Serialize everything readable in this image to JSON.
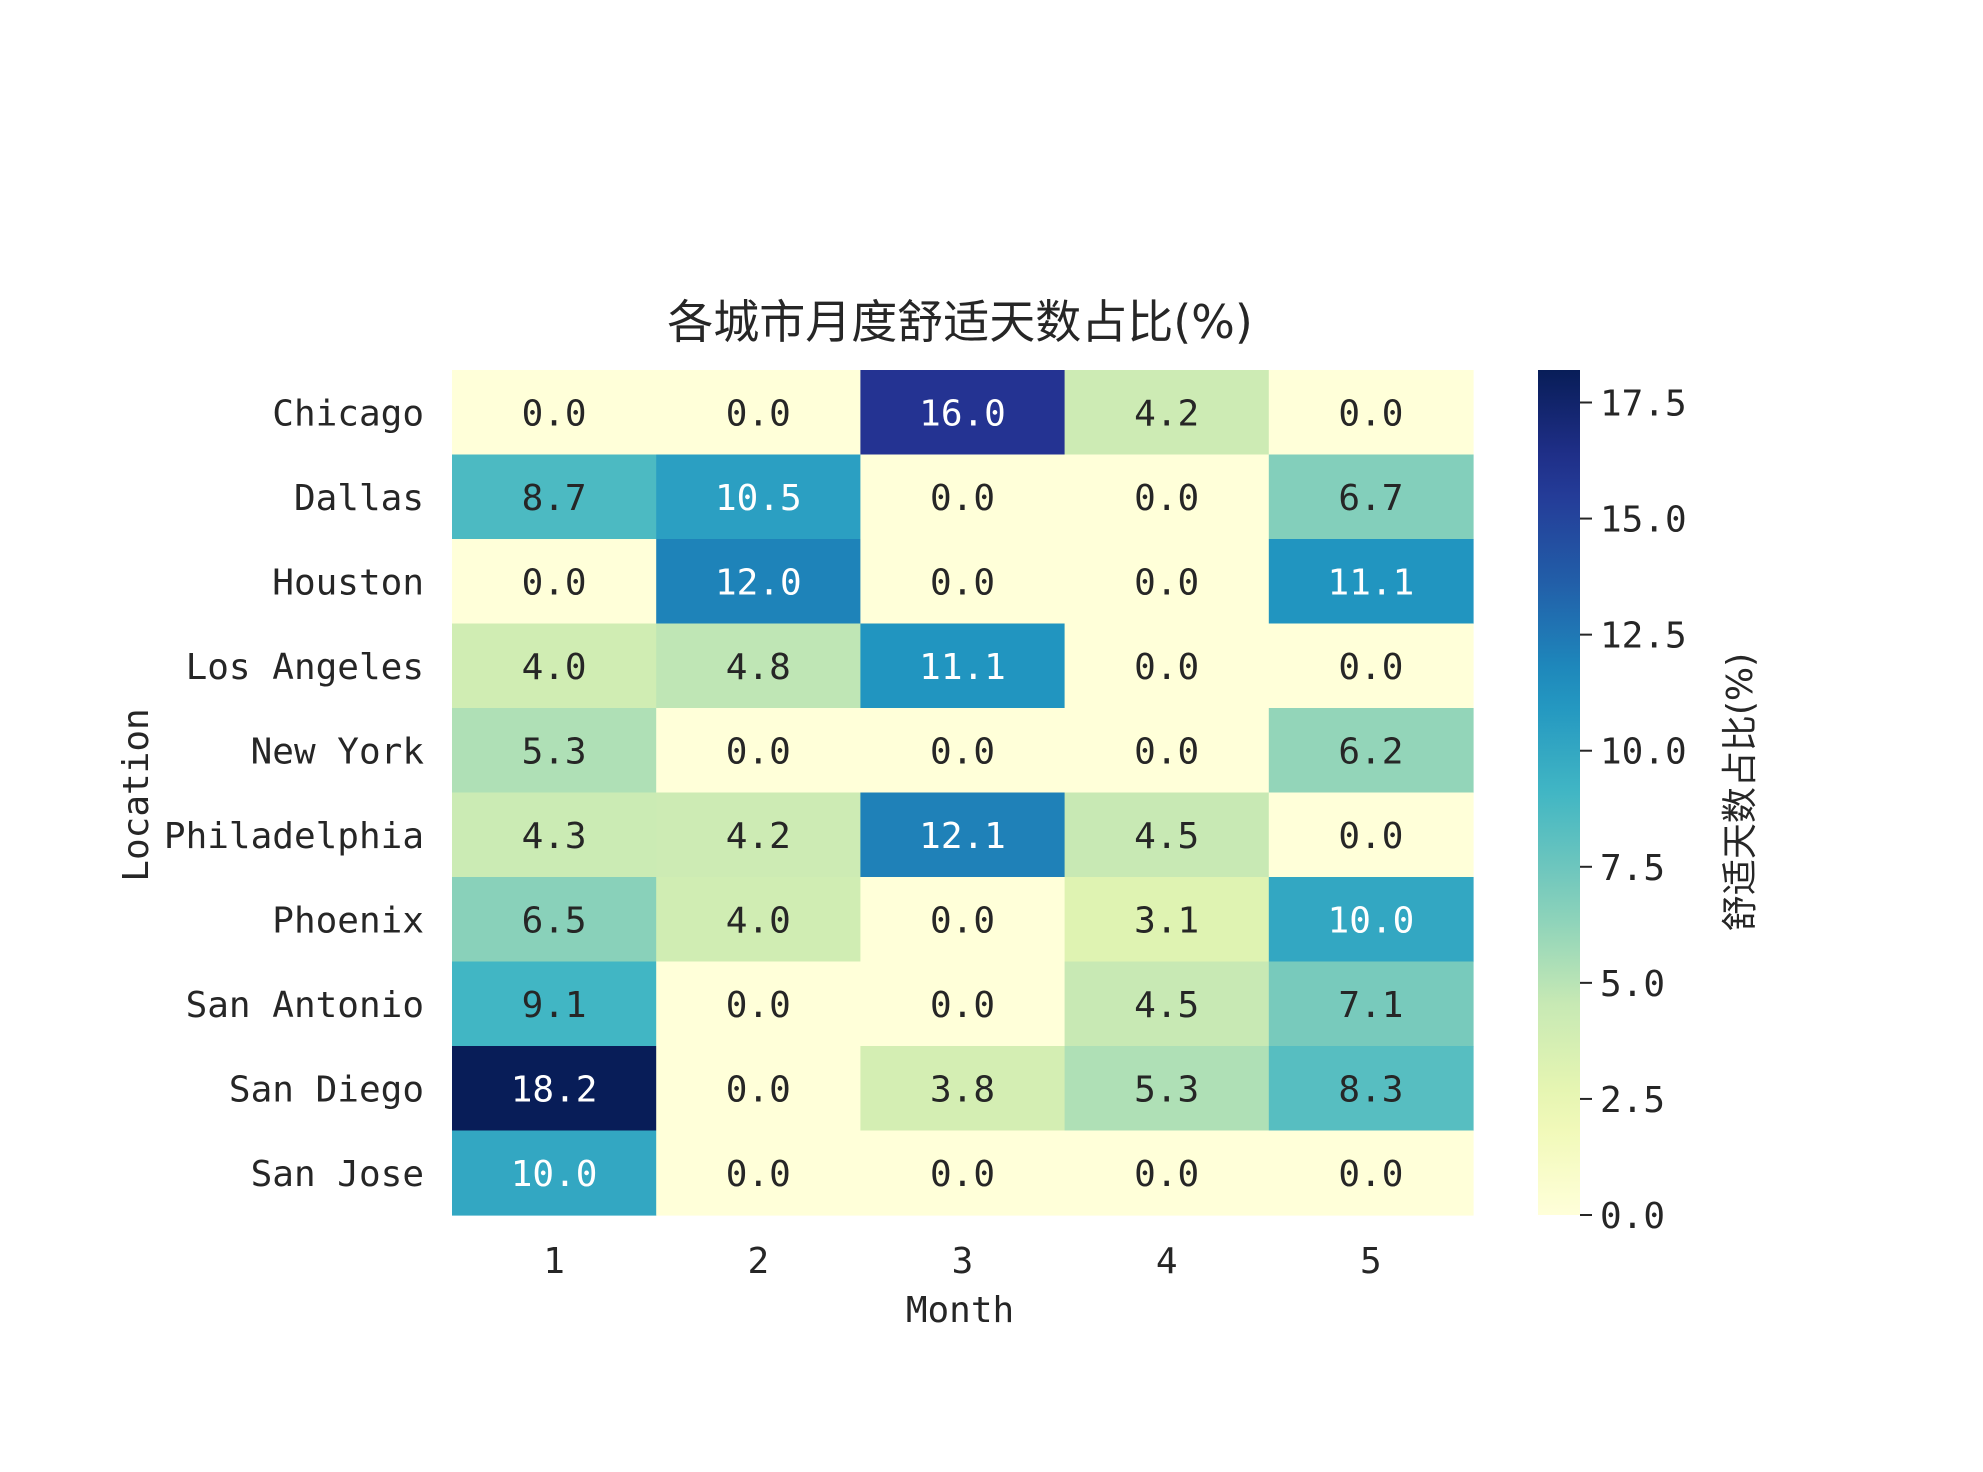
{
  "chart_data": {
    "type": "heatmap",
    "title": "各城市月度舒适天数占比(%)",
    "xlabel": "Month",
    "ylabel": "Location",
    "colorbar_label": "舒适天数占比(%)",
    "colormap": "YlGnBu",
    "x": [
      "1",
      "2",
      "3",
      "4",
      "5"
    ],
    "y": [
      "Chicago",
      "Dallas",
      "Houston",
      "Los Angeles",
      "New York",
      "Philadelphia",
      "Phoenix",
      "San Antonio",
      "San Diego",
      "San Jose"
    ],
    "values": [
      [
        0.0,
        0.0,
        16.0,
        4.2,
        0.0
      ],
      [
        8.7,
        10.5,
        0.0,
        0.0,
        6.7
      ],
      [
        0.0,
        12.0,
        0.0,
        0.0,
        11.1
      ],
      [
        4.0,
        4.8,
        11.1,
        0.0,
        0.0
      ],
      [
        5.3,
        0.0,
        0.0,
        0.0,
        6.2
      ],
      [
        4.3,
        4.2,
        12.1,
        4.5,
        0.0
      ],
      [
        6.5,
        4.0,
        0.0,
        3.1,
        10.0
      ],
      [
        9.1,
        0.0,
        0.0,
        4.5,
        7.1
      ],
      [
        18.2,
        0.0,
        3.8,
        5.3,
        8.3
      ],
      [
        10.0,
        0.0,
        0.0,
        0.0,
        0.0
      ]
    ],
    "value_format": "0.0",
    "vmin": 0.0,
    "vmax": 18.2,
    "colorbar_ticks": [
      "0.0",
      "2.5",
      "5.0",
      "7.5",
      "10.0",
      "12.5",
      "15.0",
      "17.5"
    ],
    "colorbar_tick_values": [
      0.0,
      2.5,
      5.0,
      7.5,
      10.0,
      12.5,
      15.0,
      17.5
    ],
    "grid": false,
    "legend": "colorbar-right"
  }
}
